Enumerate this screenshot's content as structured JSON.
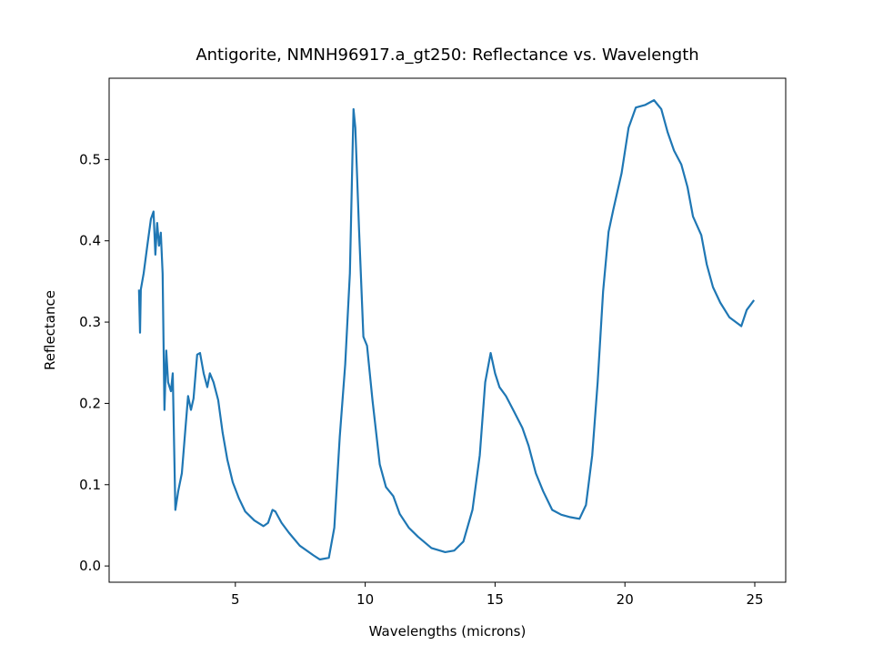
{
  "chart_data": {
    "type": "line",
    "title": "Antigorite, NMNH96917.a_gt250: Reflectance vs. Wavelength",
    "xlabel": "Wavelengths (microns)",
    "ylabel": "Reflectance",
    "xlim": [
      0.14,
      26.19
    ],
    "ylim": [
      -0.02,
      0.6
    ],
    "xticks": [
      5,
      10,
      15,
      20,
      25
    ],
    "yticks": [
      {
        "value": 0,
        "label": "0.0"
      },
      0.1,
      0.2,
      0.3,
      0.4,
      0.5
    ],
    "grid": false,
    "x": [
      1.29,
      1.33,
      1.36,
      1.47,
      1.61,
      1.75,
      1.85,
      1.92,
      1.99,
      2.06,
      2.13,
      2.2,
      2.27,
      2.34,
      2.41,
      2.52,
      2.59,
      2.69,
      2.8,
      2.94,
      3.08,
      3.18,
      3.29,
      3.39,
      3.53,
      3.64,
      3.78,
      3.92,
      4.02,
      4.16,
      4.34,
      4.51,
      4.69,
      4.9,
      5.14,
      5.38,
      5.73,
      6.08,
      6.26,
      6.43,
      6.54,
      6.78,
      7.06,
      7.48,
      8.01,
      8.25,
      8.6,
      8.81,
      9.02,
      9.23,
      9.41,
      9.51,
      9.55,
      9.62,
      9.76,
      9.93,
      10.07,
      10.28,
      10.56,
      10.8,
      11.08,
      11.33,
      11.68,
      12.03,
      12.55,
      13.08,
      13.43,
      13.78,
      14.13,
      14.41,
      14.62,
      14.83,
      15.0,
      15.17,
      15.42,
      15.73,
      16.05,
      16.29,
      16.57,
      16.85,
      17.2,
      17.55,
      17.9,
      18.25,
      18.5,
      18.74,
      18.95,
      19.16,
      19.37,
      19.55,
      19.87,
      20.14,
      20.42,
      20.77,
      21.12,
      21.4,
      21.64,
      21.89,
      22.17,
      22.41,
      22.62,
      22.94,
      23.15,
      23.39,
      23.67,
      24.02,
      24.48,
      24.69,
      24.97
    ],
    "series": [
      {
        "name": "Reflectance",
        "color": "#1f77b4",
        "values": [
          0.34,
          0.287,
          0.34,
          0.36,
          0.394,
          0.427,
          0.436,
          0.383,
          0.422,
          0.394,
          0.41,
          0.36,
          0.192,
          0.265,
          0.226,
          0.215,
          0.237,
          0.069,
          0.092,
          0.114,
          0.17,
          0.209,
          0.192,
          0.206,
          0.26,
          0.262,
          0.237,
          0.22,
          0.237,
          0.226,
          0.204,
          0.164,
          0.131,
          0.103,
          0.083,
          0.067,
          0.056,
          0.049,
          0.053,
          0.069,
          0.067,
          0.053,
          0.041,
          0.025,
          0.013,
          0.008,
          0.01,
          0.047,
          0.159,
          0.248,
          0.36,
          0.506,
          0.562,
          0.539,
          0.416,
          0.282,
          0.271,
          0.204,
          0.125,
          0.097,
          0.086,
          0.064,
          0.047,
          0.036,
          0.022,
          0.017,
          0.019,
          0.03,
          0.069,
          0.136,
          0.226,
          0.262,
          0.237,
          0.22,
          0.209,
          0.19,
          0.17,
          0.148,
          0.114,
          0.092,
          0.069,
          0.063,
          0.06,
          0.058,
          0.075,
          0.136,
          0.226,
          0.338,
          0.411,
          0.438,
          0.483,
          0.539,
          0.564,
          0.567,
          0.573,
          0.562,
          0.534,
          0.511,
          0.494,
          0.466,
          0.43,
          0.407,
          0.371,
          0.343,
          0.324,
          0.306,
          0.295,
          0.315,
          0.327
        ]
      }
    ]
  }
}
